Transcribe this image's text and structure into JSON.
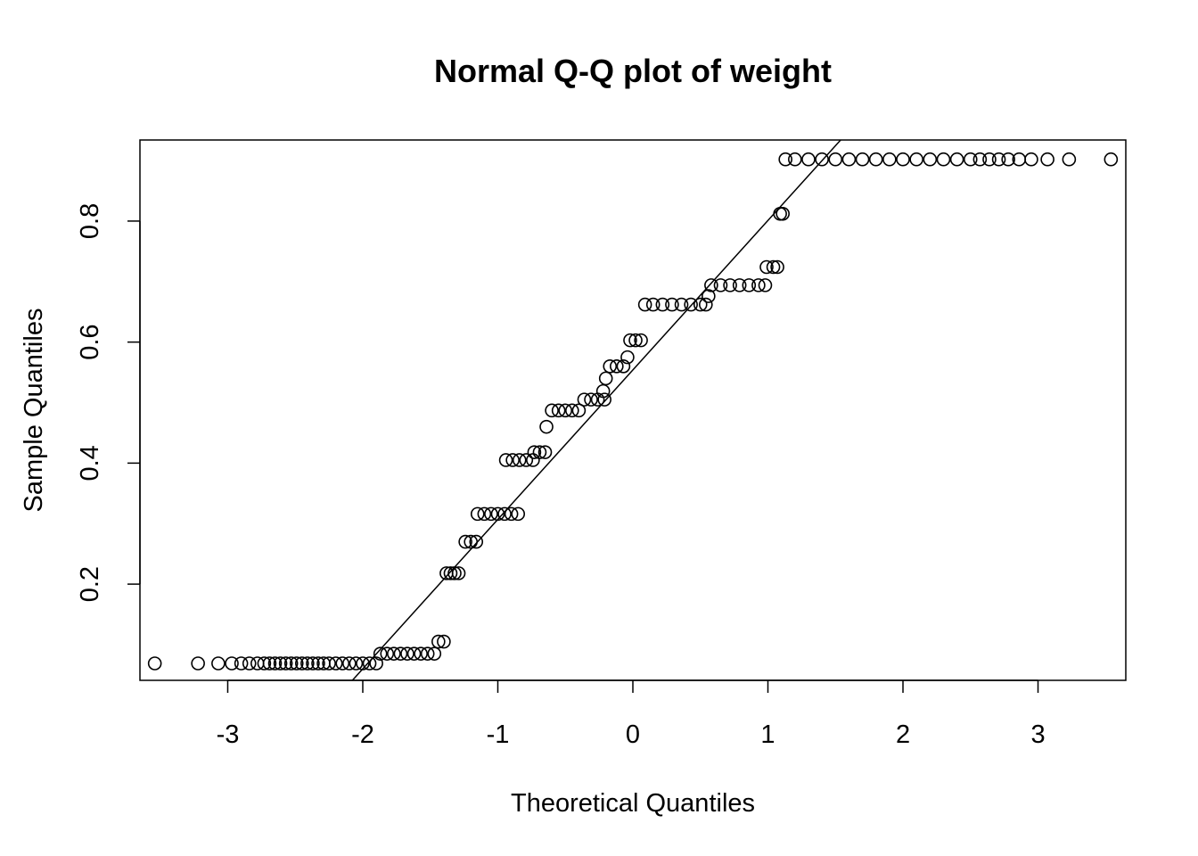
{
  "chart_data": {
    "type": "scatter",
    "title": "Normal Q-Q plot of weight",
    "xlabel": "Theoretical Quantiles",
    "ylabel": "Sample Quantiles",
    "xlim": [
      -3.65,
      3.65
    ],
    "ylim": [
      0.041,
      0.934
    ],
    "x_ticks": [
      -3,
      -2,
      -1,
      0,
      1,
      2,
      3
    ],
    "y_ticks": [
      0.2,
      0.4,
      0.6,
      0.8
    ],
    "grid": false,
    "legend": "none",
    "reference_line": {
      "slope": 0.247,
      "intercept": 0.554
    },
    "point_style": "open-circle",
    "point_color": "#000000",
    "series": [
      {
        "x": [
          -3.54,
          -3.22,
          -3.07,
          -2.97,
          -2.9,
          -2.84,
          -2.78,
          -2.73,
          -2.69,
          -2.65,
          -2.61,
          -2.57,
          -2.53,
          -2.49,
          -2.45,
          -2.41,
          -2.37,
          -2.33,
          -2.29,
          -2.25,
          -2.2,
          -2.15,
          -2.1,
          -2.05,
          -2.0,
          -1.95,
          -1.9,
          -1.87,
          -1.82,
          -1.77,
          -1.72,
          -1.67,
          -1.62,
          -1.57,
          -1.52,
          -1.47,
          -1.44,
          -1.4,
          -1.38,
          -1.35,
          -1.32,
          -1.29,
          -1.24,
          -1.2,
          -1.16,
          -1.15,
          -1.1,
          -1.05,
          -1.0,
          -0.95,
          -0.9,
          -0.85,
          -0.94,
          -0.89,
          -0.84,
          -0.79,
          -0.74,
          -0.73,
          -0.69,
          -0.65,
          -0.64,
          -0.6,
          -0.55,
          -0.5,
          -0.45,
          -0.4,
          -0.36,
          -0.31,
          -0.26,
          -0.21,
          -0.22,
          -0.2,
          -0.17,
          -0.12,
          -0.07,
          -0.04,
          -0.02,
          0.02,
          0.06,
          0.09,
          0.15,
          0.22,
          0.29,
          0.36,
          0.43,
          0.5,
          0.54,
          0.56,
          0.58,
          0.65,
          0.72,
          0.79,
          0.86,
          0.93,
          0.98,
          0.99,
          1.04,
          1.07,
          1.09,
          1.11,
          1.13,
          1.2,
          1.3,
          1.4,
          1.5,
          1.6,
          1.7,
          1.8,
          1.9,
          2.0,
          2.1,
          2.2,
          2.3,
          2.4,
          2.5,
          2.57,
          2.64,
          2.71,
          2.78,
          2.86,
          2.95,
          3.07,
          3.23,
          3.54
        ],
        "y": [
          0.069,
          0.069,
          0.069,
          0.069,
          0.069,
          0.069,
          0.069,
          0.069,
          0.069,
          0.069,
          0.069,
          0.069,
          0.069,
          0.069,
          0.069,
          0.069,
          0.069,
          0.069,
          0.069,
          0.069,
          0.069,
          0.069,
          0.069,
          0.069,
          0.069,
          0.069,
          0.069,
          0.085,
          0.085,
          0.085,
          0.085,
          0.085,
          0.085,
          0.085,
          0.085,
          0.085,
          0.105,
          0.105,
          0.218,
          0.218,
          0.218,
          0.218,
          0.27,
          0.27,
          0.27,
          0.316,
          0.316,
          0.316,
          0.316,
          0.316,
          0.316,
          0.316,
          0.405,
          0.405,
          0.405,
          0.405,
          0.405,
          0.418,
          0.418,
          0.418,
          0.46,
          0.487,
          0.487,
          0.487,
          0.487,
          0.487,
          0.505,
          0.505,
          0.505,
          0.505,
          0.519,
          0.54,
          0.56,
          0.56,
          0.56,
          0.575,
          0.603,
          0.603,
          0.603,
          0.662,
          0.662,
          0.662,
          0.662,
          0.662,
          0.662,
          0.662,
          0.662,
          0.676,
          0.694,
          0.694,
          0.694,
          0.694,
          0.694,
          0.694,
          0.694,
          0.724,
          0.724,
          0.724,
          0.812,
          0.812,
          0.902,
          0.902,
          0.902,
          0.902,
          0.902,
          0.902,
          0.902,
          0.902,
          0.902,
          0.902,
          0.902,
          0.902,
          0.902,
          0.902,
          0.902,
          0.902,
          0.902,
          0.902,
          0.902,
          0.902,
          0.902,
          0.902,
          0.902,
          0.902
        ]
      }
    ]
  }
}
